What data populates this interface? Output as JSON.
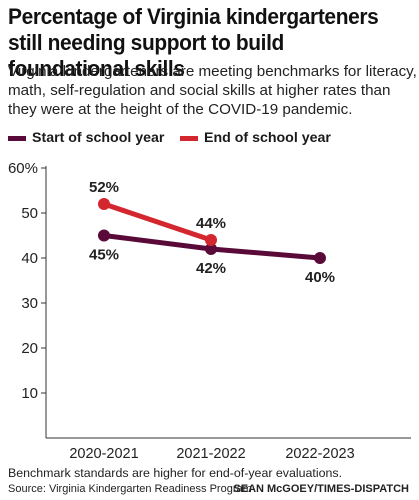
{
  "header": {
    "title": "Percentage of Virginia kindergarteners still needing support to build foundational skills",
    "subtitle": "Virginia kindergarteners are meeting benchmarks for literacy, math, self-regulation and social skills at higher rates than they were at the height of the COVID-19 pandemic."
  },
  "legend": {
    "items": [
      {
        "label": "Start of school year",
        "color": "#5a0a38"
      },
      {
        "label": "End of school year",
        "color": "#d4262f"
      }
    ]
  },
  "chart_data": {
    "type": "line",
    "x": [
      "2020-2021",
      "2021-2022",
      "2022-2023"
    ],
    "ylim": [
      0,
      60
    ],
    "yticks": [
      10,
      20,
      30,
      40,
      50,
      60
    ],
    "ytick_labels": [
      "10",
      "20",
      "30",
      "40",
      "50",
      "60%"
    ],
    "grid": false,
    "legend_position": "top-left",
    "series": [
      {
        "name": "Start of school year",
        "color": "#5a0a38",
        "values": [
          45,
          42,
          40
        ],
        "labels": [
          "45%",
          "42%",
          "40%"
        ],
        "label_position": "below"
      },
      {
        "name": "End of school year",
        "color": "#d4262f",
        "values": [
          52,
          44,
          null
        ],
        "labels": [
          "52%",
          "44%",
          ""
        ],
        "label_position": "above"
      }
    ]
  },
  "footer": {
    "note": "Benchmark standards are higher for end-of-year evaluations.",
    "source": "Source: Virginia Kindergarten Readiness Program",
    "credit": "SEAN McGOEY/TIMES-DISPATCH"
  }
}
